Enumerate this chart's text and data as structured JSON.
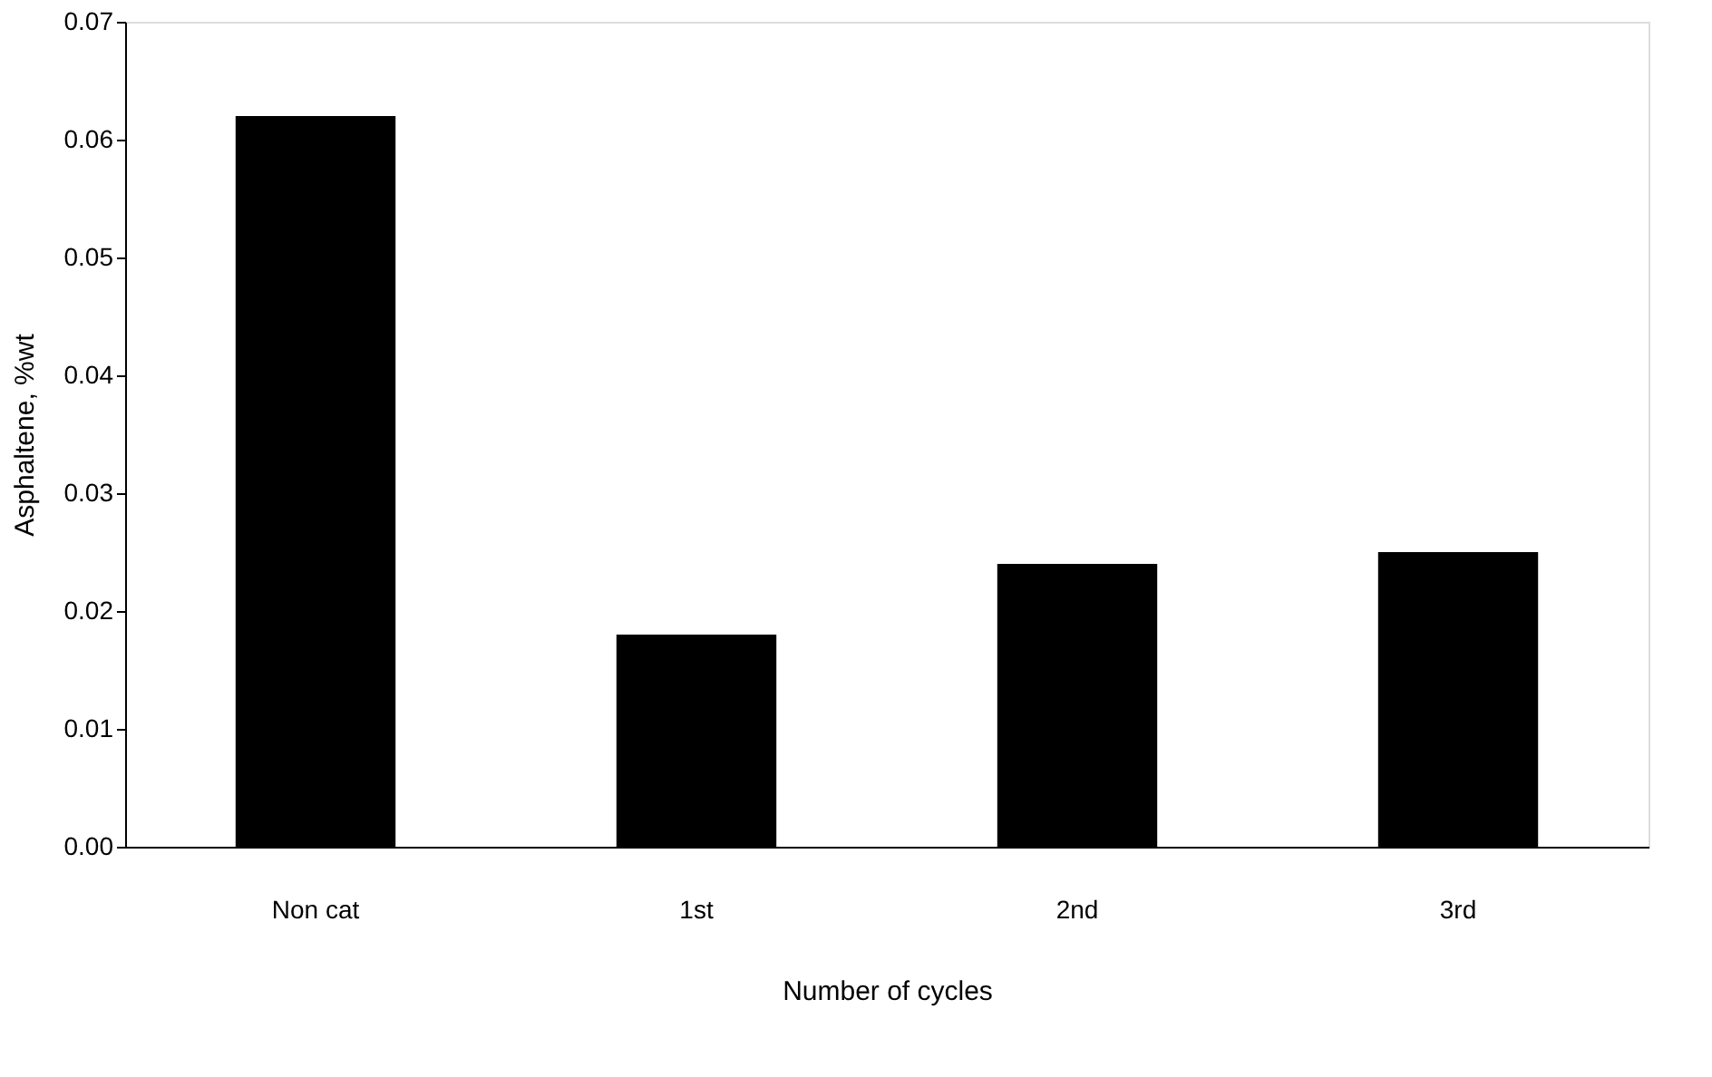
{
  "chart_data": {
    "type": "bar",
    "xlabel": "Number of cycles",
    "ylabel": "Asphaltene, %wt",
    "categories": [
      "Non cat",
      "1st",
      "2nd",
      "3rd"
    ],
    "values": [
      0.062,
      0.018,
      0.024,
      0.025
    ],
    "color": "#000000",
    "ylim": [
      0,
      0.07
    ],
    "yticks": [
      {
        "value": 0,
        "label": "0.00"
      },
      {
        "value": 0.01,
        "label": "0.01"
      },
      {
        "value": 0.02,
        "label": "0.02"
      },
      {
        "value": 0.03,
        "label": "0.03"
      },
      {
        "value": 0.04,
        "label": "0.04"
      },
      {
        "value": 0.05,
        "label": "0.05"
      },
      {
        "value": 0.06,
        "label": "0.06"
      },
      {
        "value": 0.07,
        "label": "0.07"
      }
    ],
    "grid": false
  }
}
